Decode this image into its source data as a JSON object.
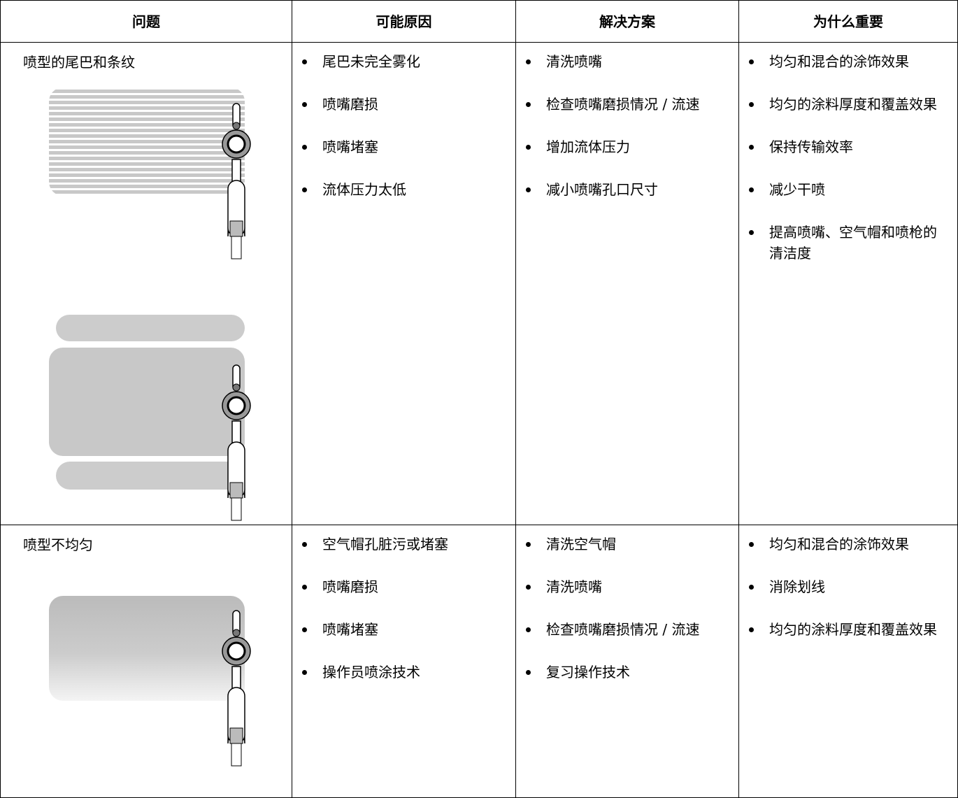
{
  "table": {
    "header": [
      "问题",
      "可能原因",
      "解决方案",
      "为什么重要"
    ],
    "rows": [
      {
        "problem": "喷型的尾巴和条纹",
        "causes": [
          "尾巴未完全雾化",
          "喷嘴磨损",
          "喷嘴堵塞",
          "流体压力太低"
        ],
        "solutions": [
          "清洗喷嘴",
          "检查喷嘴磨损情况 / 流速",
          "增加流体压力",
          "减小喷嘴孔口尺寸"
        ],
        "importance": [
          "均匀和混合的涂饰效果",
          "均匀的涂料厚度和覆盖效果",
          "保持传输效率",
          "减少干喷",
          "提高喷嘴、空气帽和喷枪的清洁度"
        ]
      },
      {
        "problem": "喷型不均匀",
        "causes": [
          "空气帽孔脏污或堵塞",
          "喷嘴磨损",
          "喷嘴堵塞",
          "操作员喷涂技术"
        ],
        "solutions": [
          "清洗空气帽",
          "清洗喷嘴",
          "检查喷嘴磨损情况 / 流速",
          "复习操作技术"
        ],
        "importance": [
          "均匀和混合的涂饰效果",
          "消除划线",
          "均匀的涂料厚度和覆盖效果"
        ]
      }
    ]
  }
}
